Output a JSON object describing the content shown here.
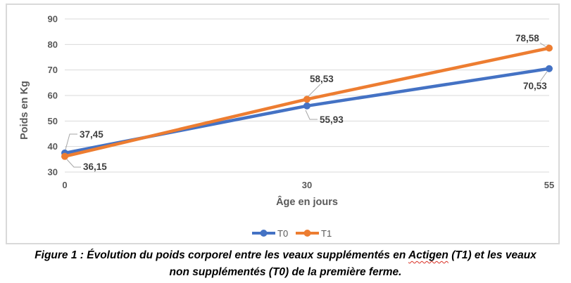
{
  "theme": {
    "background": "#FFFFFF",
    "chart_border": "#D9D9D9",
    "gridline": "#D9D9D9",
    "axis_text": "#595959",
    "data_label_text": "#3F3F3F",
    "leader_line": "#A6A6A6",
    "spellcheck_underline": "#D93025"
  },
  "chart_data": {
    "type": "line",
    "title": "",
    "xlabel": "Âge en jours",
    "ylabel": "Poids en Kg",
    "categories": [
      0,
      30,
      55
    ],
    "x_tick_labels": [
      "0",
      "30",
      "55"
    ],
    "y_ticks": [
      30,
      40,
      50,
      60,
      70,
      80,
      90
    ],
    "ylim": [
      30,
      90
    ],
    "grid": true,
    "legend_position": "bottom",
    "series": [
      {
        "name": "T0",
        "color": "#4472C4",
        "values": [
          37.45,
          55.93,
          70.53
        ],
        "labels": [
          "37,45",
          "55,93",
          "70,53"
        ]
      },
      {
        "name": "T1",
        "color": "#ED7D31",
        "values": [
          36.15,
          58.53,
          78.58
        ],
        "labels": [
          "36,15",
          "58,53",
          "78,58"
        ]
      }
    ]
  },
  "caption": {
    "line1_before": "Figure 1 : Évolution du poids corporel entre les veaux supplémentés en ",
    "misspelled_word": "Actigen",
    "line1_after": " (T1) et les veaux",
    "line2": "non supplémentés (T0) de la première ferme."
  }
}
